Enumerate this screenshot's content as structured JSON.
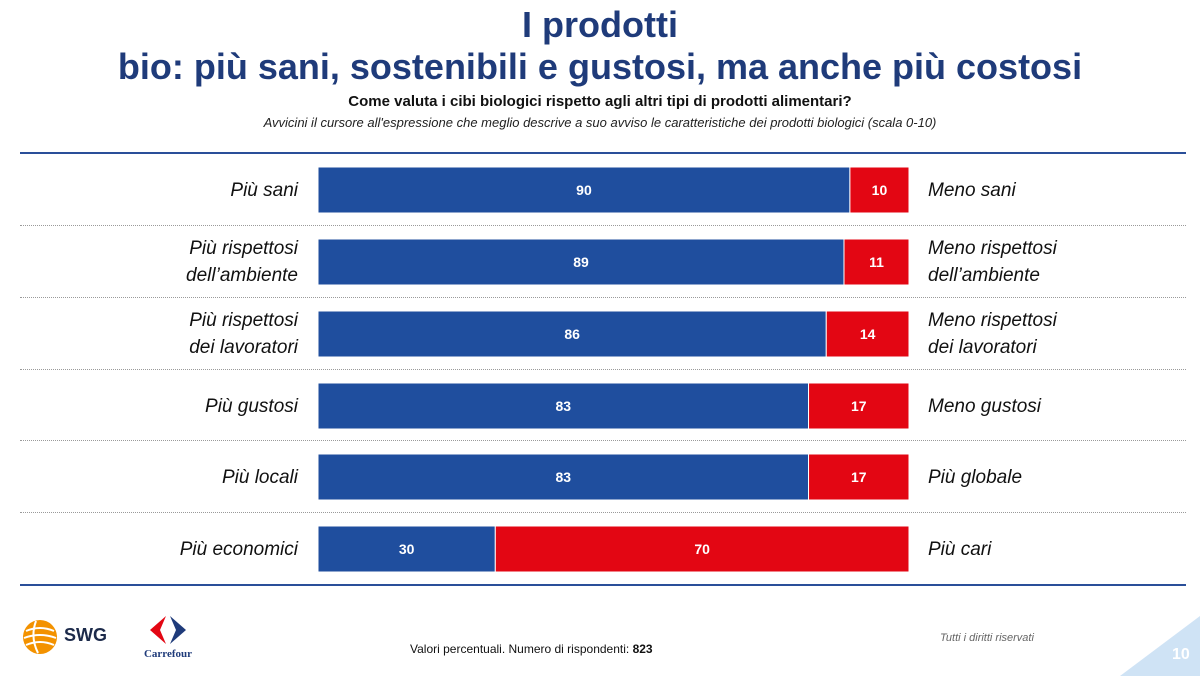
{
  "header": {
    "title_line1": "I prodotti",
    "title_line2": "bio: più sani, sostenibili e gustosi, ma anche più costosi",
    "question": "Come valuta i cibi biologici rispetto agli altri tipi di prodotti alimentari?",
    "instruction": "Avvicini il cursore all'espressione che meglio descrive a suo avviso le caratteristiche dei prodotti biologici (scala 0-10)"
  },
  "rows": [
    {
      "left_lines": [
        "Più sani"
      ],
      "right_lines": [
        "Meno sani"
      ]
    },
    {
      "left_lines": [
        "Più rispettosi",
        "dell’ambiente"
      ],
      "right_lines": [
        "Meno rispettosi",
        "dell’ambiente"
      ]
    },
    {
      "left_lines": [
        "Più rispettosi",
        "dei lavoratori"
      ],
      "right_lines": [
        "Meno rispettosi",
        "dei lavoratori"
      ]
    },
    {
      "left_lines": [
        "Più gustosi"
      ],
      "right_lines": [
        "Meno gustosi"
      ]
    },
    {
      "left_lines": [
        "Più locali"
      ],
      "right_lines": [
        "Più globale"
      ]
    },
    {
      "left_lines": [
        "Più economici"
      ],
      "right_lines": [
        "Più cari"
      ]
    }
  ],
  "chart_data": {
    "type": "bar",
    "orientation": "horizontal",
    "stacked": true,
    "categories": [
      "Più sani",
      "Più rispettosi dell’ambiente",
      "Più rispettosi dei lavoratori",
      "Più gustosi",
      "Più locali",
      "Più economici"
    ],
    "series": [
      {
        "values": [
          90,
          89,
          86,
          83,
          83,
          30
        ],
        "color": "#1f4e9e"
      },
      {
        "values": [
          10,
          11,
          14,
          17,
          17,
          70
        ],
        "color": "#e30613"
      }
    ],
    "xlim": [
      0,
      100
    ],
    "data_labels": true
  },
  "footer": {
    "text_prefix": "Valori percentuali.  Numero di rispondenti: ",
    "respondents": "823",
    "rights": "Tutti i diritti riservati",
    "page_number": "10",
    "swg_label": "SWG",
    "carrefour_label": "Carrefour"
  },
  "colors": {
    "title": "#1f3b7a",
    "positive_bar": "#1f4e9e",
    "negative_bar": "#e30613",
    "rule": "#2a4f99"
  }
}
